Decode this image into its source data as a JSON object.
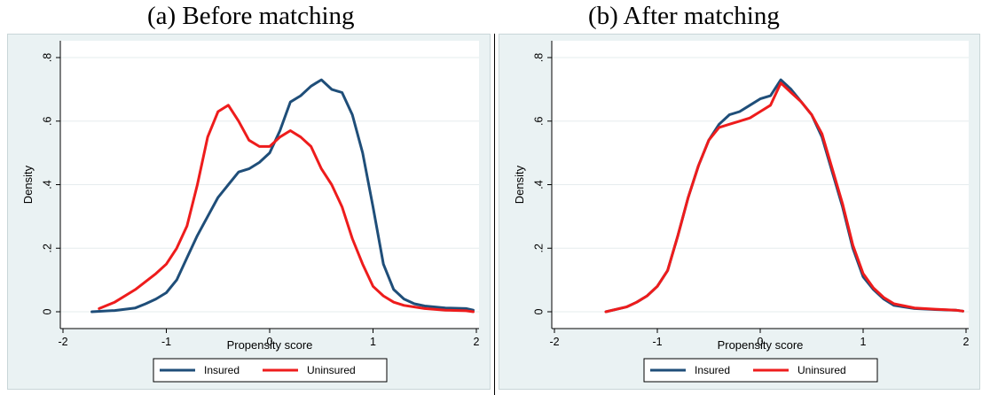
{
  "panels": [
    {
      "title": "(a) Before matching"
    },
    {
      "title": "(b) After matching"
    }
  ],
  "chart_data": [
    {
      "type": "line",
      "title": "(a) Before matching",
      "xlabel": "Propensity score",
      "ylabel": "Density",
      "xlim": [
        -2,
        2
      ],
      "ylim": [
        0,
        0.8
      ],
      "xticks": [
        -2,
        -1,
        0,
        1,
        2
      ],
      "yticks": [
        0,
        0.2,
        0.4,
        0.6,
        0.8
      ],
      "xtick_labels": [
        "-2",
        "-1",
        "0",
        "1",
        "2"
      ],
      "ytick_labels": [
        "0",
        ".2",
        ".4",
        ".6",
        ".8"
      ],
      "grid": "horizontal",
      "legend_position": "bottom",
      "series": [
        {
          "name": "Insured",
          "color": "#1f4e79",
          "x": [
            -1.72,
            -1.5,
            -1.3,
            -1.2,
            -1.1,
            -1.0,
            -0.9,
            -0.8,
            -0.7,
            -0.6,
            -0.5,
            -0.4,
            -0.3,
            -0.2,
            -0.1,
            0.0,
            0.1,
            0.2,
            0.3,
            0.4,
            0.45,
            0.5,
            0.6,
            0.7,
            0.8,
            0.9,
            1.0,
            1.1,
            1.2,
            1.3,
            1.4,
            1.5,
            1.7,
            1.9,
            1.97
          ],
          "y": [
            0.0,
            0.004,
            0.012,
            0.025,
            0.04,
            0.06,
            0.1,
            0.17,
            0.24,
            0.3,
            0.36,
            0.4,
            0.44,
            0.45,
            0.47,
            0.5,
            0.57,
            0.66,
            0.68,
            0.71,
            0.72,
            0.73,
            0.7,
            0.69,
            0.62,
            0.5,
            0.33,
            0.15,
            0.07,
            0.04,
            0.025,
            0.018,
            0.012,
            0.01,
            0.005
          ]
        },
        {
          "name": "Uninsured",
          "color": "#ee1c1c",
          "x": [
            -1.65,
            -1.5,
            -1.3,
            -1.1,
            -1.0,
            -0.9,
            -0.8,
            -0.7,
            -0.6,
            -0.5,
            -0.4,
            -0.3,
            -0.2,
            -0.1,
            0.0,
            0.1,
            0.2,
            0.3,
            0.4,
            0.5,
            0.6,
            0.7,
            0.8,
            0.9,
            1.0,
            1.1,
            1.2,
            1.3,
            1.5,
            1.7,
            1.9,
            1.97
          ],
          "y": [
            0.01,
            0.03,
            0.07,
            0.12,
            0.15,
            0.2,
            0.27,
            0.4,
            0.55,
            0.63,
            0.65,
            0.6,
            0.54,
            0.52,
            0.52,
            0.55,
            0.57,
            0.55,
            0.52,
            0.45,
            0.4,
            0.33,
            0.23,
            0.15,
            0.08,
            0.05,
            0.03,
            0.02,
            0.01,
            0.005,
            0.003,
            0.0
          ]
        }
      ]
    },
    {
      "type": "line",
      "title": "(b) After matching",
      "xlabel": "Propensity score",
      "ylabel": "Density",
      "xlim": [
        -2,
        2
      ],
      "ylim": [
        0,
        0.8
      ],
      "xticks": [
        -2,
        -1,
        0,
        1,
        2
      ],
      "yticks": [
        0,
        0.2,
        0.4,
        0.6,
        0.8
      ],
      "xtick_labels": [
        "-2",
        "-1",
        "0",
        "1",
        "2"
      ],
      "ytick_labels": [
        "0",
        ".2",
        ".4",
        ".6",
        ".8"
      ],
      "grid": "horizontal",
      "legend_position": "bottom",
      "series": [
        {
          "name": "Insured",
          "color": "#1f4e79",
          "x": [
            -1.5,
            -1.3,
            -1.2,
            -1.1,
            -1.0,
            -0.9,
            -0.8,
            -0.7,
            -0.6,
            -0.5,
            -0.4,
            -0.3,
            -0.2,
            -0.1,
            0.0,
            0.1,
            0.2,
            0.3,
            0.4,
            0.5,
            0.6,
            0.7,
            0.8,
            0.9,
            1.0,
            1.1,
            1.2,
            1.3,
            1.5,
            1.7,
            1.9,
            1.97
          ],
          "y": [
            0.0,
            0.015,
            0.03,
            0.05,
            0.08,
            0.13,
            0.24,
            0.36,
            0.46,
            0.54,
            0.59,
            0.62,
            0.63,
            0.65,
            0.67,
            0.68,
            0.73,
            0.7,
            0.66,
            0.62,
            0.55,
            0.44,
            0.33,
            0.2,
            0.11,
            0.07,
            0.04,
            0.02,
            0.01,
            0.007,
            0.005,
            0.002
          ]
        },
        {
          "name": "Uninsured",
          "color": "#ee1c1c",
          "x": [
            -1.5,
            -1.3,
            -1.2,
            -1.1,
            -1.0,
            -0.9,
            -0.8,
            -0.7,
            -0.6,
            -0.5,
            -0.4,
            -0.3,
            -0.2,
            -0.1,
            0.0,
            0.1,
            0.2,
            0.3,
            0.4,
            0.5,
            0.6,
            0.7,
            0.8,
            0.9,
            1.0,
            1.1,
            1.2,
            1.3,
            1.5,
            1.7,
            1.9,
            1.97
          ],
          "y": [
            0.0,
            0.015,
            0.03,
            0.05,
            0.08,
            0.13,
            0.24,
            0.36,
            0.46,
            0.54,
            0.58,
            0.59,
            0.6,
            0.61,
            0.63,
            0.65,
            0.72,
            0.69,
            0.66,
            0.62,
            0.56,
            0.45,
            0.34,
            0.21,
            0.12,
            0.075,
            0.045,
            0.025,
            0.012,
            0.008,
            0.005,
            0.002
          ]
        }
      ]
    }
  ]
}
